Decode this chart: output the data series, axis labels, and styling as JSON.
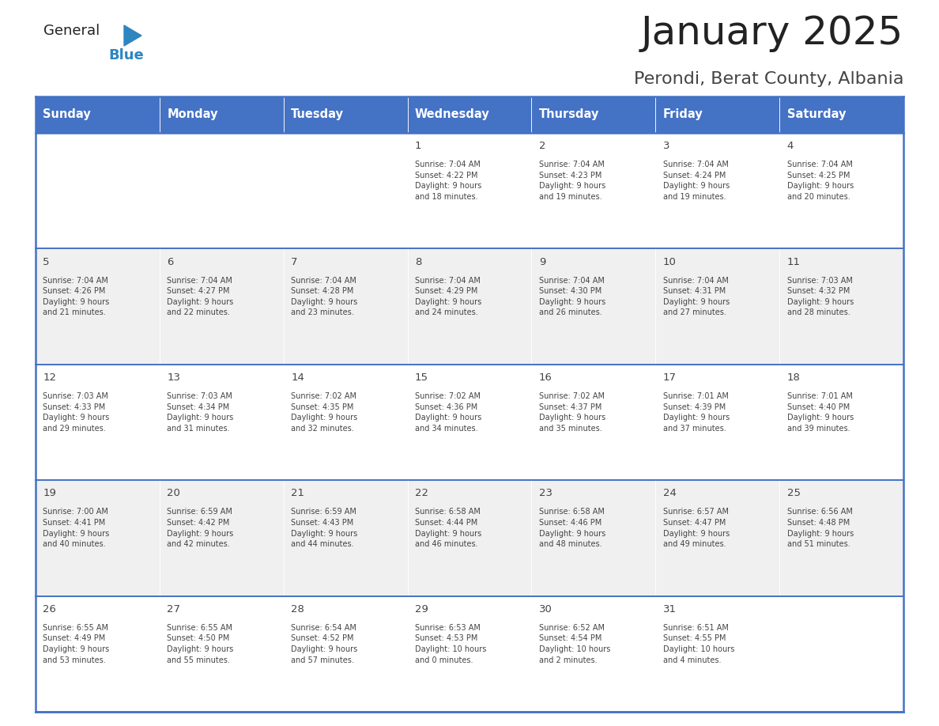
{
  "title": "January 2025",
  "subtitle": "Perondi, Berat County, Albania",
  "header_bg": "#4472C4",
  "header_text_color": "#FFFFFF",
  "days_of_week": [
    "Sunday",
    "Monday",
    "Tuesday",
    "Wednesday",
    "Thursday",
    "Friday",
    "Saturday"
  ],
  "cell_text_color": "#444444",
  "border_color": "#4472C4",
  "row_colors": [
    "#FFFFFF",
    "#F0F0F0",
    "#FFFFFF",
    "#F0F0F0",
    "#FFFFFF"
  ],
  "calendar": [
    [
      {
        "day": "",
        "info": ""
      },
      {
        "day": "",
        "info": ""
      },
      {
        "day": "",
        "info": ""
      },
      {
        "day": "1",
        "info": "Sunrise: 7:04 AM\nSunset: 4:22 PM\nDaylight: 9 hours\nand 18 minutes."
      },
      {
        "day": "2",
        "info": "Sunrise: 7:04 AM\nSunset: 4:23 PM\nDaylight: 9 hours\nand 19 minutes."
      },
      {
        "day": "3",
        "info": "Sunrise: 7:04 AM\nSunset: 4:24 PM\nDaylight: 9 hours\nand 19 minutes."
      },
      {
        "day": "4",
        "info": "Sunrise: 7:04 AM\nSunset: 4:25 PM\nDaylight: 9 hours\nand 20 minutes."
      }
    ],
    [
      {
        "day": "5",
        "info": "Sunrise: 7:04 AM\nSunset: 4:26 PM\nDaylight: 9 hours\nand 21 minutes."
      },
      {
        "day": "6",
        "info": "Sunrise: 7:04 AM\nSunset: 4:27 PM\nDaylight: 9 hours\nand 22 minutes."
      },
      {
        "day": "7",
        "info": "Sunrise: 7:04 AM\nSunset: 4:28 PM\nDaylight: 9 hours\nand 23 minutes."
      },
      {
        "day": "8",
        "info": "Sunrise: 7:04 AM\nSunset: 4:29 PM\nDaylight: 9 hours\nand 24 minutes."
      },
      {
        "day": "9",
        "info": "Sunrise: 7:04 AM\nSunset: 4:30 PM\nDaylight: 9 hours\nand 26 minutes."
      },
      {
        "day": "10",
        "info": "Sunrise: 7:04 AM\nSunset: 4:31 PM\nDaylight: 9 hours\nand 27 minutes."
      },
      {
        "day": "11",
        "info": "Sunrise: 7:03 AM\nSunset: 4:32 PM\nDaylight: 9 hours\nand 28 minutes."
      }
    ],
    [
      {
        "day": "12",
        "info": "Sunrise: 7:03 AM\nSunset: 4:33 PM\nDaylight: 9 hours\nand 29 minutes."
      },
      {
        "day": "13",
        "info": "Sunrise: 7:03 AM\nSunset: 4:34 PM\nDaylight: 9 hours\nand 31 minutes."
      },
      {
        "day": "14",
        "info": "Sunrise: 7:02 AM\nSunset: 4:35 PM\nDaylight: 9 hours\nand 32 minutes."
      },
      {
        "day": "15",
        "info": "Sunrise: 7:02 AM\nSunset: 4:36 PM\nDaylight: 9 hours\nand 34 minutes."
      },
      {
        "day": "16",
        "info": "Sunrise: 7:02 AM\nSunset: 4:37 PM\nDaylight: 9 hours\nand 35 minutes."
      },
      {
        "day": "17",
        "info": "Sunrise: 7:01 AM\nSunset: 4:39 PM\nDaylight: 9 hours\nand 37 minutes."
      },
      {
        "day": "18",
        "info": "Sunrise: 7:01 AM\nSunset: 4:40 PM\nDaylight: 9 hours\nand 39 minutes."
      }
    ],
    [
      {
        "day": "19",
        "info": "Sunrise: 7:00 AM\nSunset: 4:41 PM\nDaylight: 9 hours\nand 40 minutes."
      },
      {
        "day": "20",
        "info": "Sunrise: 6:59 AM\nSunset: 4:42 PM\nDaylight: 9 hours\nand 42 minutes."
      },
      {
        "day": "21",
        "info": "Sunrise: 6:59 AM\nSunset: 4:43 PM\nDaylight: 9 hours\nand 44 minutes."
      },
      {
        "day": "22",
        "info": "Sunrise: 6:58 AM\nSunset: 4:44 PM\nDaylight: 9 hours\nand 46 minutes."
      },
      {
        "day": "23",
        "info": "Sunrise: 6:58 AM\nSunset: 4:46 PM\nDaylight: 9 hours\nand 48 minutes."
      },
      {
        "day": "24",
        "info": "Sunrise: 6:57 AM\nSunset: 4:47 PM\nDaylight: 9 hours\nand 49 minutes."
      },
      {
        "day": "25",
        "info": "Sunrise: 6:56 AM\nSunset: 4:48 PM\nDaylight: 9 hours\nand 51 minutes."
      }
    ],
    [
      {
        "day": "26",
        "info": "Sunrise: 6:55 AM\nSunset: 4:49 PM\nDaylight: 9 hours\nand 53 minutes."
      },
      {
        "day": "27",
        "info": "Sunrise: 6:55 AM\nSunset: 4:50 PM\nDaylight: 9 hours\nand 55 minutes."
      },
      {
        "day": "28",
        "info": "Sunrise: 6:54 AM\nSunset: 4:52 PM\nDaylight: 9 hours\nand 57 minutes."
      },
      {
        "day": "29",
        "info": "Sunrise: 6:53 AM\nSunset: 4:53 PM\nDaylight: 10 hours\nand 0 minutes."
      },
      {
        "day": "30",
        "info": "Sunrise: 6:52 AM\nSunset: 4:54 PM\nDaylight: 10 hours\nand 2 minutes."
      },
      {
        "day": "31",
        "info": "Sunrise: 6:51 AM\nSunset: 4:55 PM\nDaylight: 10 hours\nand 4 minutes."
      },
      {
        "day": "",
        "info": ""
      }
    ]
  ],
  "logo_general_color": "#222222",
  "logo_blue_color": "#2E86C1",
  "title_color": "#222222",
  "subtitle_color": "#444444",
  "title_fontsize": 36,
  "subtitle_fontsize": 16
}
